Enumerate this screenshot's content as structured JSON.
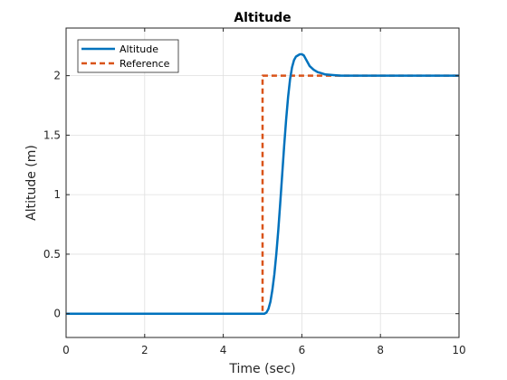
{
  "chart_data": {
    "type": "line",
    "title": "Altitude",
    "xlabel": "Time (sec)",
    "ylabel": "Altitude (m)",
    "xlim": [
      0,
      10
    ],
    "ylim": [
      -0.2,
      2.4
    ],
    "xticks": [
      0,
      2,
      4,
      6,
      8,
      10
    ],
    "xtick_labels": [
      "0",
      "2",
      "4",
      "6",
      "8",
      "10"
    ],
    "yticks": [
      0,
      0.5,
      1,
      1.5,
      2
    ],
    "ytick_labels": [
      "0",
      "0.5",
      "1",
      "1.5",
      "2"
    ],
    "grid": true,
    "legend_position": "top-left",
    "series": [
      {
        "name": "Altitude",
        "style": "solid",
        "color": "#0072BD",
        "x": [
          0,
          5.0,
          5.05,
          5.1,
          5.15,
          5.2,
          5.25,
          5.3,
          5.35,
          5.4,
          5.45,
          5.5,
          5.55,
          5.6,
          5.65,
          5.7,
          5.75,
          5.8,
          5.85,
          5.9,
          5.95,
          6.0,
          6.05,
          6.1,
          6.15,
          6.2,
          6.3,
          6.4,
          6.5,
          6.6,
          6.8,
          7.0,
          7.5,
          8.0,
          10.0
        ],
        "y": [
          0,
          0,
          0.0,
          0.01,
          0.04,
          0.1,
          0.2,
          0.33,
          0.5,
          0.7,
          0.93,
          1.17,
          1.41,
          1.63,
          1.82,
          1.97,
          2.07,
          2.13,
          2.16,
          2.17,
          2.18,
          2.18,
          2.17,
          2.14,
          2.11,
          2.08,
          2.05,
          2.03,
          2.02,
          2.01,
          2.005,
          2.0,
          2.0,
          2.0,
          2.0
        ]
      },
      {
        "name": "Reference",
        "style": "dashed",
        "color": "#D95319",
        "x": [
          0,
          5,
          5,
          10
        ],
        "y": [
          0,
          0,
          2,
          2
        ]
      }
    ]
  }
}
